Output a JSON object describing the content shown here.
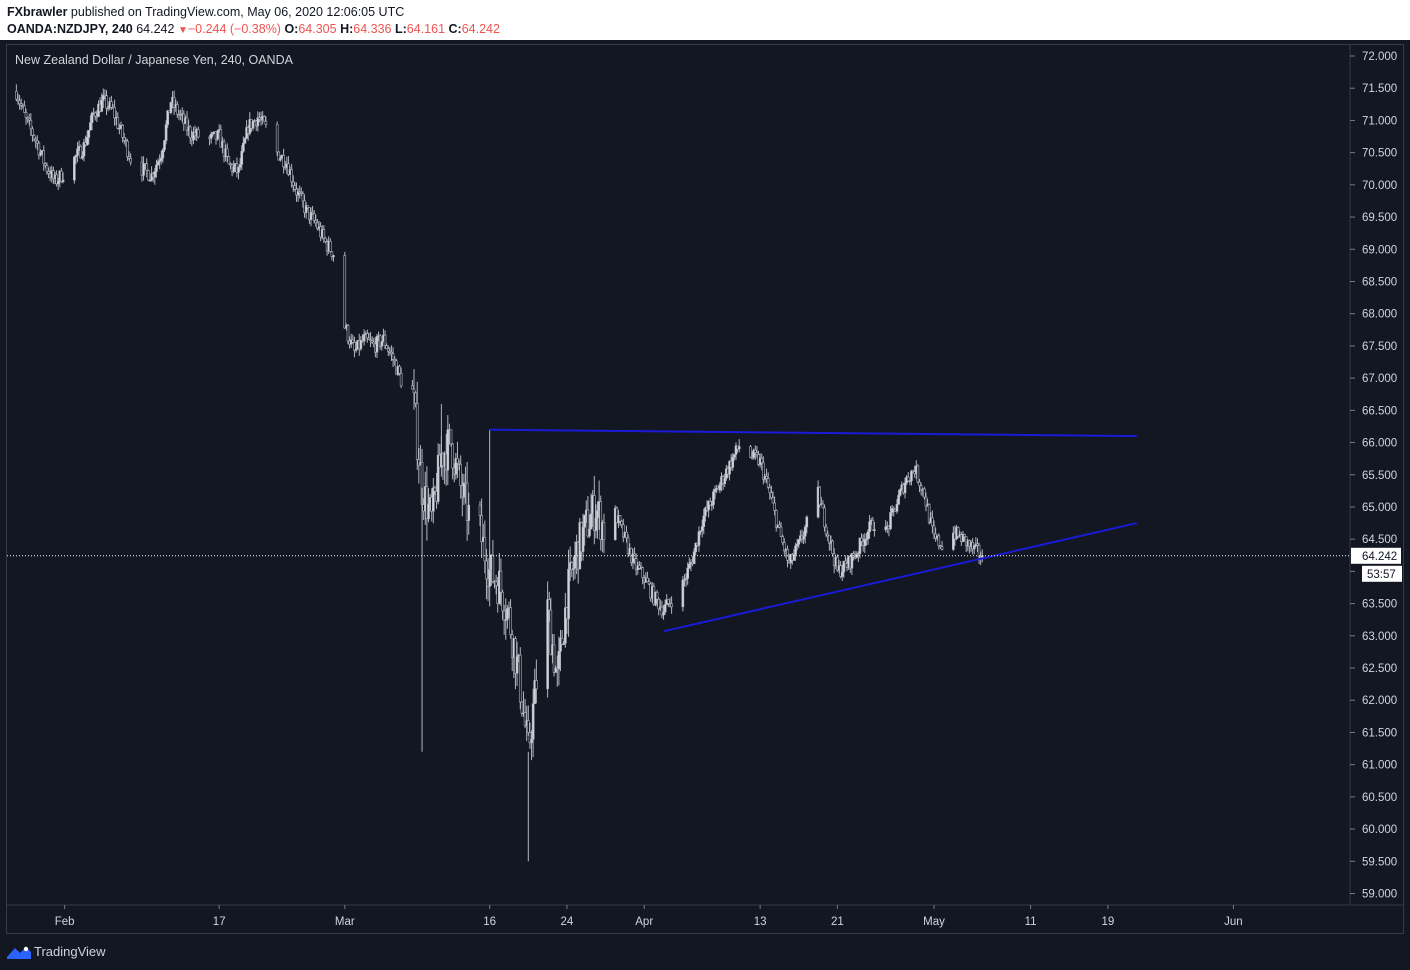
{
  "header": {
    "publisher": "FXbrawler",
    "published_text": "published on TradingView.com, May 06, 2020 12:06:05 UTC",
    "symbol": "OANDA:NZDJPY, 240",
    "last": "64.242",
    "change": "−0.244 (−0.38%)",
    "o_label": "O:",
    "o_value": "64.305",
    "h_label": "H:",
    "h_value": "64.336",
    "l_label": "L:",
    "l_value": "64.161",
    "c_label": "C:",
    "c_value": "64.242"
  },
  "chart_title": "New Zealand Dollar / Japanese Yen, 240, OANDA",
  "footer": {
    "brand": "TradingView"
  },
  "colors": {
    "background": "#131722",
    "candle": "#d1d4dc",
    "trendline": "#1a1ad8",
    "negative": "#ef5350"
  },
  "chart_data": {
    "type": "candlestick",
    "title": "New Zealand Dollar / Japanese Yen, 240, OANDA",
    "ylim": [
      58.8,
      72.3
    ],
    "y_axis_side": "right",
    "y_ticks": [
      "72.000",
      "71.500",
      "71.000",
      "70.500",
      "70.000",
      "69.500",
      "69.000",
      "68.500",
      "68.000",
      "67.500",
      "67.000",
      "66.500",
      "66.000",
      "65.500",
      "65.000",
      "64.500",
      "64.000",
      "63.500",
      "63.000",
      "62.500",
      "62.000",
      "61.500",
      "61.000",
      "60.500",
      "60.000",
      "59.500",
      "59.000"
    ],
    "x_ticks": [
      "Feb",
      "17",
      "Mar",
      "16",
      "24",
      "Apr",
      "13",
      "21",
      "May",
      "11",
      "19",
      "Jun"
    ],
    "x_tick_dates": [
      "2020-02-01",
      "2020-02-17",
      "2020-03-01",
      "2020-03-16",
      "2020-03-24",
      "2020-04-01",
      "2020-04-13",
      "2020-04-21",
      "2020-05-01",
      "2020-05-11",
      "2020-05-19",
      "2020-06-01"
    ],
    "last_price": 64.242,
    "last_price_label": "64.242",
    "countdown_label": "53:57",
    "price_path": [
      [
        "2020-01-27T00:00",
        71.45
      ],
      [
        "2020-01-28T00:00",
        71.0
      ],
      [
        "2020-01-29T00:00",
        70.7
      ],
      [
        "2020-01-30T00:00",
        70.3
      ],
      [
        "2020-01-31T00:00",
        70.05
      ],
      [
        "2020-02-01T00:00",
        70.2
      ],
      [
        "2020-02-03T00:00",
        70.6
      ],
      [
        "2020-02-04T00:00",
        71.1
      ],
      [
        "2020-02-05T00:00",
        71.3
      ],
      [
        "2020-02-06T00:00",
        71.15
      ],
      [
        "2020-02-07T00:00",
        70.75
      ],
      [
        "2020-02-08T00:00",
        70.35
      ],
      [
        "2020-02-10T00:00",
        70.15
      ],
      [
        "2020-02-11T00:00",
        70.5
      ],
      [
        "2020-02-12T00:00",
        71.3
      ],
      [
        "2020-02-13T00:00",
        71.05
      ],
      [
        "2020-02-14T00:00",
        70.8
      ],
      [
        "2020-02-16T00:00",
        70.7
      ],
      [
        "2020-02-17T00:00",
        70.75
      ],
      [
        "2020-02-18T00:00",
        70.3
      ],
      [
        "2020-02-19T00:00",
        70.2
      ],
      [
        "2020-02-20T00:00",
        70.9
      ],
      [
        "2020-02-21T00:00",
        71.05
      ],
      [
        "2020-02-22T00:00",
        70.85
      ],
      [
        "2020-02-23T00:00",
        70.5
      ],
      [
        "2020-02-24T00:00",
        70.35
      ],
      [
        "2020-02-25T00:00",
        69.9
      ],
      [
        "2020-02-26T00:00",
        69.6
      ],
      [
        "2020-02-27T00:00",
        69.4
      ],
      [
        "2020-02-28T00:00",
        69.1
      ],
      [
        "2020-02-29T00:00",
        68.9
      ],
      [
        "2020-03-01T00:00",
        67.8
      ],
      [
        "2020-03-02T00:00",
        67.4
      ],
      [
        "2020-03-03T00:00",
        67.6
      ],
      [
        "2020-03-04T00:00",
        67.5
      ],
      [
        "2020-03-05T00:00",
        67.6
      ],
      [
        "2020-03-06T00:00",
        67.3
      ],
      [
        "2020-03-07T00:00",
        66.9
      ],
      [
        "2020-03-08T00:00",
        66.8
      ],
      [
        "2020-03-09T00:00",
        65.3
      ],
      [
        "2020-03-10T00:00",
        64.8
      ],
      [
        "2020-03-11T00:00",
        65.8
      ],
      [
        "2020-03-12T00:00",
        66.0
      ],
      [
        "2020-03-13T00:00",
        65.3
      ],
      [
        "2020-03-14T00:00",
        64.8
      ],
      [
        "2020-03-15T00:00",
        64.6
      ],
      [
        "2020-03-16T00:00",
        64.0
      ],
      [
        "2020-03-17T00:00",
        63.8
      ],
      [
        "2020-03-18T00:00",
        63.3
      ],
      [
        "2020-03-19T00:00",
        62.4
      ],
      [
        "2020-03-20T00:00",
        61.2
      ],
      [
        "2020-03-21T00:00",
        62.5
      ],
      [
        "2020-03-22T00:00",
        63.4
      ],
      [
        "2020-03-23T00:00",
        62.3
      ],
      [
        "2020-03-24T00:00",
        63.6
      ],
      [
        "2020-03-25T00:00",
        64.3
      ],
      [
        "2020-03-26T00:00",
        64.7
      ],
      [
        "2020-03-27T00:00",
        65.0
      ],
      [
        "2020-03-28T00:00",
        64.6
      ],
      [
        "2020-03-29T00:00",
        64.9
      ],
      [
        "2020-03-30T00:00",
        64.5
      ],
      [
        "2020-03-31T00:00",
        64.1
      ],
      [
        "2020-04-01T00:00",
        63.9
      ],
      [
        "2020-04-02T00:00",
        63.6
      ],
      [
        "2020-04-03T00:00",
        63.4
      ],
      [
        "2020-04-04T00:00",
        63.6
      ],
      [
        "2020-04-05T00:00",
        63.8
      ],
      [
        "2020-04-06T00:00",
        64.2
      ],
      [
        "2020-04-07T00:00",
        64.8
      ],
      [
        "2020-04-08T00:00",
        65.1
      ],
      [
        "2020-04-09T00:00",
        65.4
      ],
      [
        "2020-04-10T00:00",
        65.7
      ],
      [
        "2020-04-11T00:00",
        66.0
      ],
      [
        "2020-04-12T00:00",
        65.8
      ],
      [
        "2020-04-13T00:00",
        65.7
      ],
      [
        "2020-04-14T00:00",
        65.2
      ],
      [
        "2020-04-15T00:00",
        64.6
      ],
      [
        "2020-04-16T00:00",
        64.1
      ],
      [
        "2020-04-17T00:00",
        64.4
      ],
      [
        "2020-04-18T00:00",
        64.8
      ],
      [
        "2020-04-19T00:00",
        65.2
      ],
      [
        "2020-04-20T00:00",
        64.6
      ],
      [
        "2020-04-21T00:00",
        64.0
      ],
      [
        "2020-04-22T00:00",
        64.1
      ],
      [
        "2020-04-23T00:00",
        64.3
      ],
      [
        "2020-04-24T00:00",
        64.6
      ],
      [
        "2020-04-25T00:00",
        64.8
      ],
      [
        "2020-04-26T00:00",
        64.6
      ],
      [
        "2020-04-27T00:00",
        65.0
      ],
      [
        "2020-04-28T00:00",
        65.4
      ],
      [
        "2020-04-29T00:00",
        65.6
      ],
      [
        "2020-04-30T00:00",
        65.2
      ],
      [
        "2020-05-01T00:00",
        64.5
      ],
      [
        "2020-05-02T00:00",
        64.4
      ],
      [
        "2020-05-03T00:00",
        64.6
      ],
      [
        "2020-05-04T00:00",
        64.5
      ],
      [
        "2020-05-05T00:00",
        64.35
      ],
      [
        "2020-05-06T00:00",
        64.242
      ]
    ],
    "extremes": [
      [
        "2020-03-09T00:00",
        61.2
      ],
      [
        "2020-03-20T00:00",
        59.5
      ],
      [
        "2020-03-16T00:00",
        66.2
      ],
      [
        "2020-03-11T00:00",
        66.6
      ]
    ],
    "trendlines": [
      {
        "name": "resistance",
        "from": [
          "2020-03-16",
          66.2
        ],
        "to": [
          "2020-05-22",
          66.1
        ]
      },
      {
        "name": "support",
        "from": [
          "2020-04-03",
          63.07
        ],
        "to": [
          "2020-05-22",
          64.75
        ]
      }
    ]
  }
}
